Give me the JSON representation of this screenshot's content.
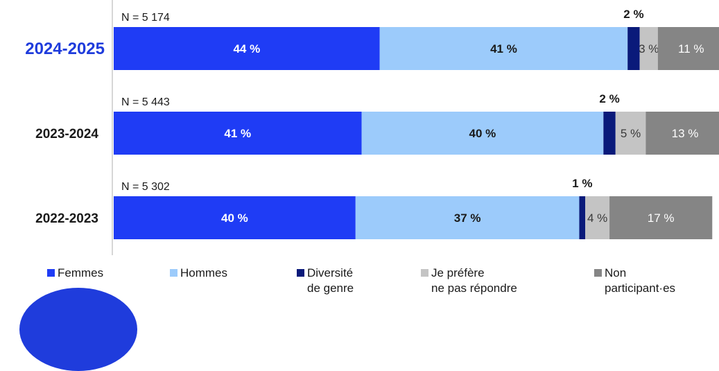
{
  "chart_data": {
    "type": "bar",
    "orientation": "horizontal",
    "stacked": true,
    "percent_scale": [
      0,
      100
    ],
    "categories": [
      "2024-2025",
      "2023-2024",
      "2022-2023"
    ],
    "sample_sizes": [
      "N = 5 174",
      "N = 5 443",
      "N = 5 302"
    ],
    "highlighted_category": "2024-2025",
    "series": [
      {
        "name": "Femmes",
        "color": "#1f3cf5",
        "values": [
          44,
          41,
          40
        ],
        "labels": [
          "44 %",
          "41 %",
          "40 %"
        ],
        "label_color": "#ffffff",
        "label_bold": true
      },
      {
        "name": "Hommes",
        "color": "#9ccbfb",
        "values": [
          41,
          40,
          37
        ],
        "labels": [
          "41 %",
          "40 %",
          "37 %"
        ],
        "label_color": "#1a1a1a",
        "label_bold": true
      },
      {
        "name": "Diversité de genre",
        "color": "#0a1a7a",
        "values": [
          2,
          2,
          1
        ],
        "labels": [
          "2 %",
          "2 %",
          "1 %"
        ],
        "label_position": "above"
      },
      {
        "name": "Je préfère ne pas répondre",
        "color": "#c4c4c4",
        "values": [
          3,
          5,
          4
        ],
        "labels": [
          "3 %",
          "5 %",
          "4 %"
        ],
        "label_color": "#3a3a3a",
        "label_bold": false
      },
      {
        "name": "Non participant·es",
        "color": "#858585",
        "values": [
          11,
          13,
          17
        ],
        "labels": [
          "11 %",
          "13 %",
          "17 %"
        ],
        "label_color": "#ffffff",
        "label_bold": false
      }
    ],
    "legend": {
      "position": "bottom",
      "entries": [
        {
          "text": "Femmes",
          "color": "#1f3cf5"
        },
        {
          "text": "Hommes",
          "color": "#9ccbfb"
        },
        {
          "text": "Diversité\nde genre",
          "color": "#0a1a7a"
        },
        {
          "text": "Je préfère\nne pas répondre",
          "color": "#c4c4c4"
        },
        {
          "text": "Non\nparticipant·es",
          "color": "#858585"
        }
      ]
    },
    "grid": false
  }
}
